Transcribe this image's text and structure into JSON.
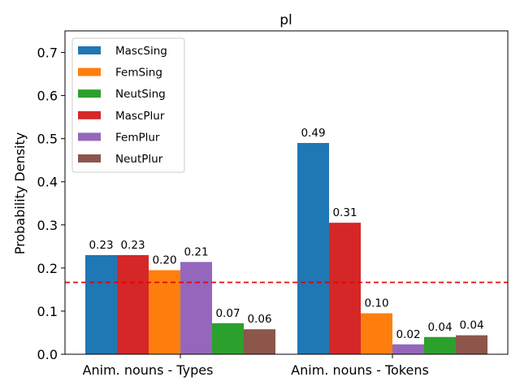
{
  "chart_data": {
    "type": "bar",
    "title": "pl",
    "xlabel": "",
    "ylabel": "Probability Density",
    "ylim": [
      0,
      0.75
    ],
    "yticks": [
      0.0,
      0.1,
      0.2,
      0.3,
      0.4,
      0.5,
      0.6,
      0.7
    ],
    "ytick_labels": [
      "0.0",
      "0.1",
      "0.2",
      "0.3",
      "0.4",
      "0.5",
      "0.6",
      "0.7"
    ],
    "grid": false,
    "legend_position": "top-left",
    "reference_line": {
      "y": 0.1667,
      "color": "#e00000",
      "style": "dashed"
    },
    "categories": [
      "Anim. nouns - Types",
      "Anim. nouns - Tokens"
    ],
    "series": [
      {
        "name": "MascSing",
        "color": "#1f77b4",
        "values": [
          0.23,
          0.49
        ],
        "labels": [
          "0.23",
          "0.49"
        ]
      },
      {
        "name": "FemSing",
        "color": "#ff7f0e",
        "values": [
          0.195,
          0.095
        ],
        "labels": [
          "0.20",
          "0.10"
        ]
      },
      {
        "name": "NeutSing",
        "color": "#2ca02c",
        "values": [
          0.072,
          0.04
        ],
        "labels": [
          "0.07",
          "0.04"
        ]
      },
      {
        "name": "MascPlur",
        "color": "#d62728",
        "values": [
          0.23,
          0.305
        ],
        "labels": [
          "0.23",
          "0.31"
        ]
      },
      {
        "name": "FemPlur",
        "color": "#9467bd",
        "values": [
          0.214,
          0.023
        ],
        "labels": [
          "0.21",
          "0.02"
        ]
      },
      {
        "name": "NeutPlur",
        "color": "#8c564b",
        "values": [
          0.058,
          0.044
        ],
        "labels": [
          "0.06",
          "0.04"
        ]
      }
    ],
    "bar_order": [
      [
        "MascSing",
        "MascPlur",
        "FemSing",
        "FemPlur",
        "NeutSing",
        "NeutPlur"
      ],
      [
        "MascSing",
        "MascPlur",
        "FemSing",
        "FemPlur",
        "NeutSing",
        "NeutPlur"
      ]
    ]
  }
}
